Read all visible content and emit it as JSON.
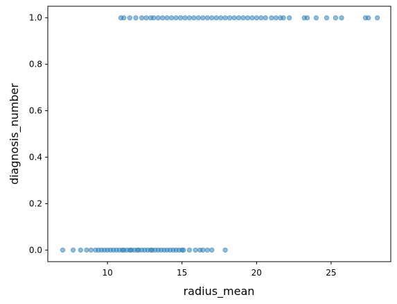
{
  "chart_data": {
    "type": "scatter",
    "title": "",
    "xlabel": "radius_mean",
    "ylabel": "diagnosis_number",
    "xlim": [
      6.0,
      29.0
    ],
    "ylim": [
      -0.05,
      1.05
    ],
    "xticks": [
      10,
      15,
      20,
      25
    ],
    "xtick_labels": [
      "10",
      "15",
      "20",
      "25"
    ],
    "yticks": [
      0.0,
      0.2,
      0.4,
      0.6,
      0.8,
      1.0
    ],
    "ytick_labels": [
      "0.0",
      "0.2",
      "0.4",
      "0.6",
      "0.8",
      "1.0"
    ],
    "grid": false,
    "marker_color": "#1f77b4",
    "marker_alpha": 0.5,
    "series": [
      {
        "x": [
          7.0,
          7.7,
          8.2,
          8.6,
          8.9,
          9.2,
          9.4,
          9.6,
          9.8,
          10.0,
          10.2,
          10.4,
          10.6,
          10.8,
          11.0,
          11.1,
          11.3,
          11.5,
          11.6,
          11.8,
          12.0,
          12.1,
          12.3,
          12.5,
          12.7,
          12.9,
          13.0,
          13.2,
          13.4,
          13.6,
          13.8,
          14.0,
          14.2,
          14.4,
          14.6,
          14.8,
          15.0,
          15.1,
          15.5,
          15.9,
          16.2,
          16.4,
          16.7,
          17.0,
          17.9
        ],
        "y": [
          0,
          0,
          0,
          0,
          0,
          0,
          0,
          0,
          0,
          0,
          0,
          0,
          0,
          0,
          0,
          0,
          0,
          0,
          0,
          0,
          0,
          0,
          0,
          0,
          0,
          0,
          0,
          0,
          0,
          0,
          0,
          0,
          0,
          0,
          0,
          0,
          0,
          0,
          0,
          0,
          0,
          0,
          0,
          0,
          0
        ]
      },
      {
        "x": [
          10.9,
          11.1,
          11.5,
          11.9,
          12.3,
          12.6,
          12.9,
          13.1,
          13.4,
          13.7,
          14.0,
          14.3,
          14.6,
          14.9,
          15.2,
          15.5,
          15.8,
          16.1,
          16.4,
          16.7,
          17.0,
          17.3,
          17.6,
          17.9,
          18.2,
          18.5,
          18.8,
          19.1,
          19.4,
          19.7,
          20.0,
          20.3,
          20.6,
          21.0,
          21.3,
          21.6,
          21.8,
          22.2,
          23.2,
          23.4,
          24.0,
          24.7,
          25.3,
          25.7,
          27.3,
          27.5,
          28.1
        ],
        "y": [
          1,
          1,
          1,
          1,
          1,
          1,
          1,
          1,
          1,
          1,
          1,
          1,
          1,
          1,
          1,
          1,
          1,
          1,
          1,
          1,
          1,
          1,
          1,
          1,
          1,
          1,
          1,
          1,
          1,
          1,
          1,
          1,
          1,
          1,
          1,
          1,
          1,
          1,
          1,
          1,
          1,
          1,
          1,
          1,
          1,
          1,
          1
        ]
      }
    ]
  }
}
